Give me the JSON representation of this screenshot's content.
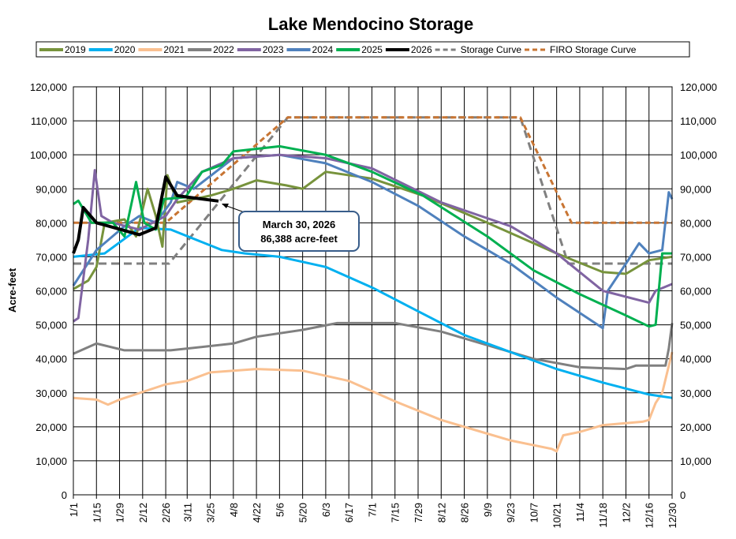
{
  "chart_data": {
    "type": "line",
    "title": "Lake Mendocino Storage",
    "ylabel": "Acre-feet",
    "xlabel": "",
    "ylim": [
      0,
      120000
    ],
    "y_ticks": [
      0,
      10000,
      20000,
      30000,
      40000,
      50000,
      60000,
      70000,
      80000,
      90000,
      100000,
      110000,
      120000
    ],
    "y_tick_labels": [
      "0",
      "10,000",
      "20,000",
      "30,000",
      "40,000",
      "50,000",
      "60,000",
      "70,000",
      "80,000",
      "90,000",
      "100,000",
      "110,000",
      "120,000"
    ],
    "x_tick_labels": [
      "1/1",
      "1/15",
      "1/29",
      "2/12",
      "2/26",
      "3/11",
      "3/25",
      "4/8",
      "4/22",
      "5/6",
      "5/20",
      "6/3",
      "6/17",
      "7/1",
      "7/15",
      "7/29",
      "8/12",
      "8/26",
      "9/9",
      "9/23",
      "10/7",
      "10/21",
      "11/4",
      "11/18",
      "12/2",
      "12/16",
      "12/30"
    ],
    "grid": true,
    "legend_position": "top",
    "annotation": {
      "line1": "March 30, 2026",
      "line2": "86,388 acre-feet",
      "x": "3/30",
      "y": 86388
    },
    "series": [
      {
        "name": "2019",
        "color": "#77933c",
        "dash": false,
        "points": [
          [
            "1/1",
            60500
          ],
          [
            "1/10",
            63000
          ],
          [
            "1/15",
            67000
          ],
          [
            "1/20",
            80000
          ],
          [
            "2/1",
            81000
          ],
          [
            "2/8",
            76000
          ],
          [
            "2/15",
            90000
          ],
          [
            "2/20",
            82000
          ],
          [
            "2/24",
            73000
          ],
          [
            "2/27",
            94000
          ],
          [
            "3/5",
            86000
          ],
          [
            "3/25",
            88000
          ],
          [
            "4/8",
            90000
          ],
          [
            "4/22",
            92500
          ],
          [
            "5/10",
            91000
          ],
          [
            "5/20",
            90000
          ],
          [
            "6/3",
            95000
          ],
          [
            "7/1",
            93000
          ],
          [
            "8/1",
            88000
          ],
          [
            "9/9",
            80000
          ],
          [
            "10/21",
            71000
          ],
          [
            "11/18",
            65500
          ],
          [
            "12/2",
            65000
          ],
          [
            "12/16",
            69000
          ],
          [
            "12/30",
            70000
          ]
        ]
      },
      {
        "name": "2020",
        "color": "#00b0f0",
        "dash": false,
        "points": [
          [
            "1/1",
            70000
          ],
          [
            "1/20",
            71000
          ],
          [
            "2/10",
            78500
          ],
          [
            "3/1",
            78000
          ],
          [
            "4/1",
            72000
          ],
          [
            "4/15",
            71000
          ],
          [
            "5/6",
            70000
          ],
          [
            "6/3",
            67000
          ],
          [
            "7/1",
            61000
          ],
          [
            "7/29",
            54000
          ],
          [
            "8/26",
            47000
          ],
          [
            "9/23",
            42000
          ],
          [
            "10/21",
            37000
          ],
          [
            "11/18",
            33000
          ],
          [
            "12/16",
            29500
          ],
          [
            "12/30",
            28500
          ]
        ]
      },
      {
        "name": "2021",
        "color": "#fac090",
        "dash": false,
        "points": [
          [
            "1/1",
            28500
          ],
          [
            "1/15",
            28000
          ],
          [
            "1/22",
            26500
          ],
          [
            "1/29",
            28000
          ],
          [
            "2/26",
            32500
          ],
          [
            "3/11",
            33500
          ],
          [
            "3/25",
            36000
          ],
          [
            "4/22",
            37000
          ],
          [
            "5/20",
            36500
          ],
          [
            "6/17",
            33500
          ],
          [
            "7/15",
            27500
          ],
          [
            "8/12",
            22000
          ],
          [
            "9/9",
            18000
          ],
          [
            "9/23",
            16000
          ],
          [
            "10/18",
            13500
          ],
          [
            "10/21",
            12800
          ],
          [
            "10/25",
            17500
          ],
          [
            "11/4",
            18500
          ],
          [
            "11/18",
            20500
          ],
          [
            "12/12",
            21500
          ],
          [
            "12/16",
            22000
          ],
          [
            "12/20",
            27000
          ],
          [
            "12/24",
            30000
          ],
          [
            "12/30",
            42000
          ]
        ]
      },
      {
        "name": "2022",
        "color": "#808080",
        "dash": false,
        "points": [
          [
            "1/1",
            41500
          ],
          [
            "1/15",
            44500
          ],
          [
            "2/1",
            42500
          ],
          [
            "3/1",
            42500
          ],
          [
            "4/8",
            44500
          ],
          [
            "4/22",
            46500
          ],
          [
            "5/20",
            48500
          ],
          [
            "6/10",
            50500
          ],
          [
            "7/15",
            50500
          ],
          [
            "8/12",
            48000
          ],
          [
            "9/9",
            44000
          ],
          [
            "10/7",
            40000
          ],
          [
            "11/4",
            37500
          ],
          [
            "12/2",
            37000
          ],
          [
            "12/8",
            38000
          ],
          [
            "12/26",
            38000
          ],
          [
            "12/28",
            43000
          ],
          [
            "12/30",
            50500
          ]
        ]
      },
      {
        "name": "2023",
        "color": "#8064a2",
        "dash": false,
        "points": [
          [
            "1/1",
            51000
          ],
          [
            "1/4",
            52000
          ],
          [
            "1/10",
            75000
          ],
          [
            "1/14",
            95500
          ],
          [
            "1/18",
            82000
          ],
          [
            "1/25",
            80000
          ],
          [
            "2/10",
            78000
          ],
          [
            "2/26",
            82000
          ],
          [
            "3/5",
            87000
          ],
          [
            "3/20",
            95000
          ],
          [
            "4/8",
            99000
          ],
          [
            "5/6",
            100000
          ],
          [
            "6/3",
            99000
          ],
          [
            "7/1",
            96000
          ],
          [
            "8/12",
            86000
          ],
          [
            "9/23",
            79000
          ],
          [
            "10/21",
            71000
          ],
          [
            "11/18",
            60000
          ],
          [
            "12/16",
            56500
          ],
          [
            "12/20",
            60000
          ],
          [
            "12/30",
            62000
          ]
        ]
      },
      {
        "name": "2024",
        "color": "#4f81bd",
        "dash": false,
        "points": [
          [
            "1/1",
            61500
          ],
          [
            "1/15",
            72000
          ],
          [
            "2/1",
            79000
          ],
          [
            "2/10",
            82000
          ],
          [
            "2/20",
            80000
          ],
          [
            "3/1",
            86000
          ],
          [
            "3/5",
            92000
          ],
          [
            "3/15",
            90000
          ],
          [
            "4/8",
            99000
          ],
          [
            "5/6",
            100000
          ],
          [
            "6/3",
            97500
          ],
          [
            "7/1",
            92000
          ],
          [
            "7/29",
            85000
          ],
          [
            "8/26",
            76000
          ],
          [
            "9/23",
            68000
          ],
          [
            "10/21",
            58000
          ],
          [
            "11/18",
            49000
          ],
          [
            "11/21",
            60000
          ],
          [
            "12/2",
            68000
          ],
          [
            "12/10",
            74000
          ],
          [
            "12/16",
            71000
          ],
          [
            "12/24",
            72000
          ],
          [
            "12/28",
            89000
          ],
          [
            "12/30",
            87000
          ]
        ]
      },
      {
        "name": "2025",
        "color": "#00b050",
        "dash": false,
        "points": [
          [
            "1/1",
            85500
          ],
          [
            "1/4",
            86500
          ],
          [
            "1/12",
            80000
          ],
          [
            "1/25",
            80000
          ],
          [
            "2/1",
            76000
          ],
          [
            "2/8",
            92000
          ],
          [
            "2/13",
            80000
          ],
          [
            "2/20",
            78000
          ],
          [
            "2/25",
            87000
          ],
          [
            "3/10",
            87500
          ],
          [
            "3/20",
            95000
          ],
          [
            "4/1",
            97000
          ],
          [
            "4/8",
            101000
          ],
          [
            "5/6",
            102500
          ],
          [
            "6/3",
            100000
          ],
          [
            "7/1",
            95000
          ],
          [
            "8/1",
            88000
          ],
          [
            "9/9",
            76000
          ],
          [
            "10/7",
            66000
          ],
          [
            "11/4",
            59000
          ],
          [
            "12/1",
            53000
          ],
          [
            "12/16",
            49500
          ],
          [
            "12/20",
            50000
          ],
          [
            "12/24",
            71000
          ],
          [
            "12/30",
            71000
          ]
        ]
      },
      {
        "name": "2026",
        "color": "#000000",
        "dash": false,
        "points": [
          [
            "1/1",
            71000
          ],
          [
            "1/4",
            75000
          ],
          [
            "1/7",
            84500
          ],
          [
            "1/15",
            80000
          ],
          [
            "2/10",
            76500
          ],
          [
            "2/20",
            78500
          ],
          [
            "2/26",
            93500
          ],
          [
            "3/5",
            88000
          ],
          [
            "3/12",
            87500
          ],
          [
            "3/30",
            86388
          ]
        ]
      },
      {
        "name": "Storage Curve",
        "color": "#808080",
        "dash": true,
        "points": [
          [
            "1/1",
            68000
          ],
          [
            "2/28",
            68000
          ],
          [
            "5/11",
            111000
          ],
          [
            "9/29",
            111000
          ],
          [
            "10/28",
            68000
          ],
          [
            "12/30",
            68000
          ]
        ]
      },
      {
        "name": "FIRO Storage Curve",
        "color": "#c87533",
        "dash": true,
        "points": [
          [
            "1/1",
            80000
          ],
          [
            "2/26",
            80000
          ],
          [
            "5/11",
            111000
          ],
          [
            "9/29",
            111000
          ],
          [
            "10/30",
            80000
          ],
          [
            "12/30",
            80000
          ]
        ]
      }
    ]
  }
}
